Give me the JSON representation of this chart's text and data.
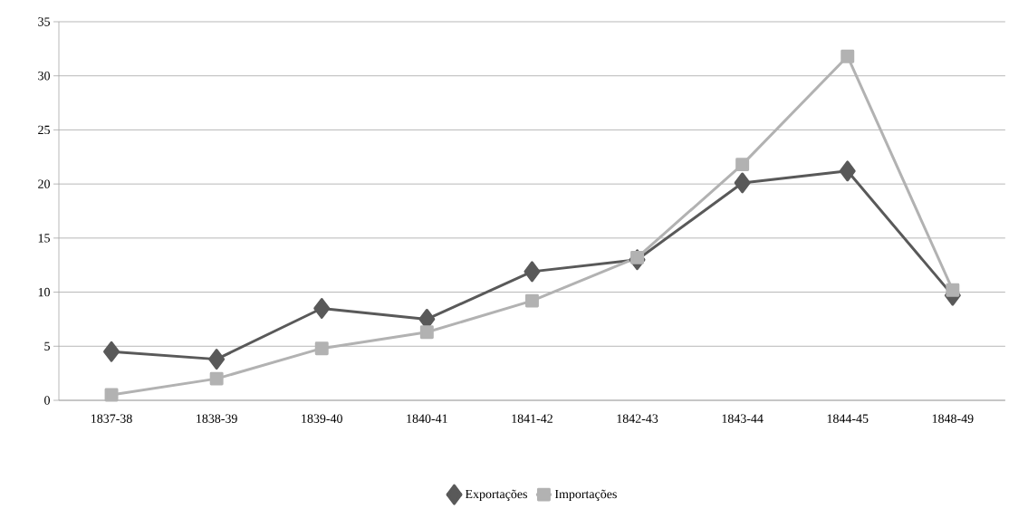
{
  "chart_data": {
    "type": "line",
    "categories": [
      "1837-38",
      "1838-39",
      "1839-40",
      "1840-41",
      "1841-42",
      "1842-43",
      "1843-44",
      "1844-45",
      "1848-49"
    ],
    "series": [
      {
        "name": "Exportações",
        "color": "#595959",
        "marker": "diamond",
        "values": [
          4.5,
          3.8,
          8.5,
          7.5,
          11.9,
          13.0,
          20.1,
          21.2,
          9.7
        ]
      },
      {
        "name": "Importações",
        "color": "#b2b2b2",
        "marker": "square",
        "values": [
          0.5,
          2.0,
          4.8,
          6.3,
          9.2,
          13.2,
          21.8,
          31.8,
          10.2
        ]
      }
    ],
    "ylim": [
      0,
      35
    ],
    "yticks": [
      0,
      5,
      10,
      15,
      20,
      25,
      30,
      35
    ],
    "grid": "y",
    "legend": "bottom",
    "line_style": "solid"
  }
}
